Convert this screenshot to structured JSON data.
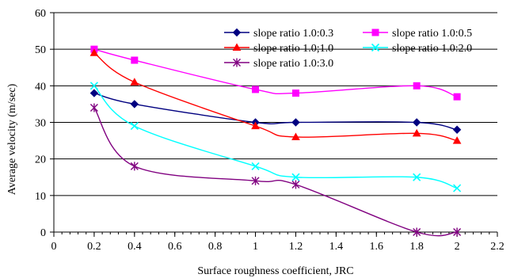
{
  "chart_data": {
    "type": "line",
    "xlabel": "Surface roughness coefficient, JRC",
    "ylabel": "Average velocity (m/sec)",
    "xlim": [
      0,
      2.2
    ],
    "ylim": [
      0,
      60
    ],
    "x_ticks": [
      "0",
      "0.2",
      "0.4",
      "0.6",
      "0.8",
      "1",
      "1.2",
      "1.4",
      "1.6",
      "1.8",
      "2",
      "2.2"
    ],
    "y_ticks": [
      "0",
      "10",
      "20",
      "30",
      "40",
      "50",
      "60"
    ],
    "x_minor_step": 0.04,
    "grid": "horizontal major gridlines",
    "legend_position": "top-right",
    "series": [
      {
        "name": "slope ratio 1.0:0.3",
        "color": "#000080",
        "marker": "diamond",
        "x": [
          0.2,
          0.4,
          1.0,
          1.2,
          1.8,
          2.0
        ],
        "y": [
          38,
          35,
          30,
          30,
          30,
          28
        ]
      },
      {
        "name": "slope ratio 1.0:0.5",
        "color": "#FF00FF",
        "marker": "square",
        "x": [
          0.2,
          0.4,
          1.0,
          1.2,
          1.8,
          2.0
        ],
        "y": [
          50,
          47,
          39,
          38,
          40,
          37
        ]
      },
      {
        "name": "slope ratio 1.0;1.0",
        "color": "#FF0000",
        "marker": "triangle",
        "x": [
          0.2,
          0.4,
          1.0,
          1.2,
          1.8,
          2.0
        ],
        "y": [
          49,
          41,
          29,
          26,
          27,
          25
        ]
      },
      {
        "name": "slope ratio 1.0:2.0",
        "color": "#00FFFF",
        "marker": "x",
        "x": [
          0.2,
          0.4,
          1.0,
          1.2,
          1.8,
          2.0
        ],
        "y": [
          40,
          29,
          18,
          15,
          15,
          12
        ]
      },
      {
        "name": "slope ratio 1.0:3.0",
        "color": "#800080",
        "marker": "star",
        "x": [
          0.2,
          0.4,
          1.0,
          1.2,
          1.8,
          2.0
        ],
        "y": [
          34,
          18,
          14,
          13,
          0,
          0
        ]
      }
    ]
  }
}
